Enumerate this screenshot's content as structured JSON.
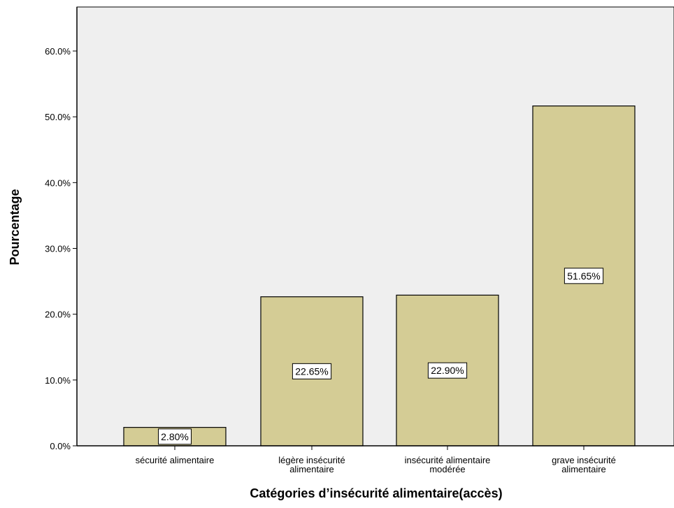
{
  "chart_data": {
    "type": "bar",
    "title": "",
    "xlabel": "Catégories d’insécurité alimentaire(accès)",
    "ylabel": "Pourcentage",
    "categories": [
      [
        "sécurité alimentaire"
      ],
      [
        "légère insécurité",
        "alimentaire"
      ],
      [
        "insécurité alimentaire",
        "modérée"
      ],
      [
        "grave insécurité",
        "alimentaire"
      ]
    ],
    "values": [
      2.8,
      22.65,
      22.9,
      51.65
    ],
    "value_labels": [
      "2.80%",
      "22.65%",
      "22.90%",
      "51.65%"
    ],
    "ylim": [
      0,
      67
    ],
    "yticks": [
      0,
      10,
      20,
      30,
      40,
      50,
      60
    ],
    "ytick_labels": [
      "0.0%",
      "10.0%",
      "20.0%",
      "30.0%",
      "40.0%",
      "50.0%",
      "60.0%"
    ],
    "grid": false,
    "legend": "none",
    "colors": {
      "plot_background": "#efefef",
      "bar_fill": "#d4cc95",
      "bar_stroke": "#000000",
      "label_box": "#ffffff"
    }
  }
}
